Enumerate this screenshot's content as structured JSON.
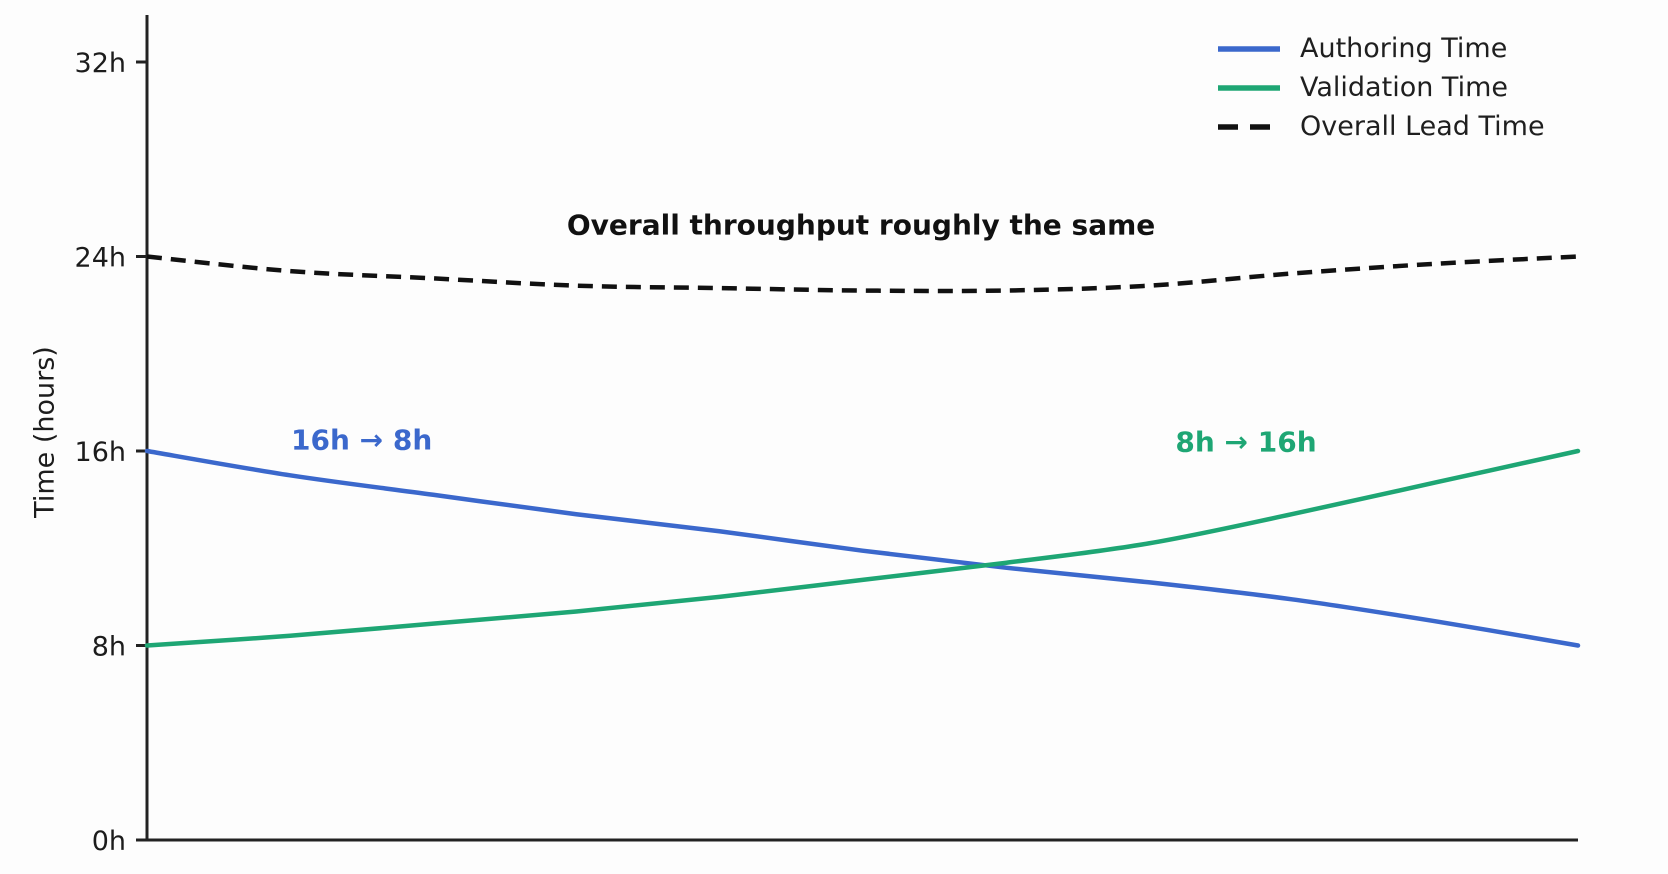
{
  "colors": {
    "authoring": "#3b68cc",
    "validation": "#1ea674",
    "overall": "#111111",
    "axis": "#222222",
    "tick_text": "#1c1c1c",
    "note_text": "#111111",
    "background": "#fdfdfd"
  },
  "y_axis": {
    "label": "Time (hours)",
    "ticks": [
      {
        "value": 0,
        "label": "0h"
      },
      {
        "value": 8,
        "label": "8h"
      },
      {
        "value": 16,
        "label": "16h"
      },
      {
        "value": 24,
        "label": "24h"
      },
      {
        "value": 32,
        "label": "32h"
      }
    ]
  },
  "legend": [
    {
      "label": "Authoring Time",
      "key": "authoring",
      "style": "solid"
    },
    {
      "label": "Validation Time",
      "key": "validation",
      "style": "solid"
    },
    {
      "label": "Overall Lead Time",
      "key": "overall",
      "style": "dashed"
    }
  ],
  "chart_data": {
    "type": "line",
    "title": "",
    "xlabel": "",
    "ylabel": "Time (hours)",
    "ylim": [
      0,
      32
    ],
    "xlim": [
      0,
      1
    ],
    "x_ticks": [],
    "y_tick_values": [
      0,
      8,
      16,
      24,
      32
    ],
    "grid": false,
    "legend_position": "upper right",
    "x": [
      0,
      0.1,
      0.2,
      0.3,
      0.4,
      0.5,
      0.6,
      0.7,
      0.8,
      0.9,
      1.0
    ],
    "series": [
      {
        "name": "Authoring Time",
        "key": "authoring",
        "style": "solid",
        "values": [
          16.0,
          15.0,
          14.2,
          13.4,
          12.7,
          11.9,
          11.2,
          10.6,
          9.9,
          9.0,
          8.0
        ]
      },
      {
        "name": "Validation Time",
        "key": "validation",
        "style": "solid",
        "values": [
          8.0,
          8.4,
          8.9,
          9.4,
          10.0,
          10.7,
          11.4,
          12.2,
          13.4,
          14.7,
          16.0
        ]
      },
      {
        "name": "Overall Lead Time",
        "key": "overall",
        "style": "dashed",
        "values": [
          24.0,
          23.4,
          23.1,
          22.8,
          22.7,
          22.6,
          22.6,
          22.8,
          23.3,
          23.7,
          24.0
        ]
      }
    ],
    "annotations": [
      {
        "text": "Overall throughput roughly the same",
        "x": 0.499,
        "y": 25.3,
        "color_key": "note_text"
      },
      {
        "text": "16h → 8h",
        "x": 0.15,
        "y": 16.45,
        "color_key": "authoring"
      },
      {
        "text": "8h → 16h",
        "x": 0.768,
        "y": 16.37,
        "color_key": "validation"
      }
    ]
  }
}
